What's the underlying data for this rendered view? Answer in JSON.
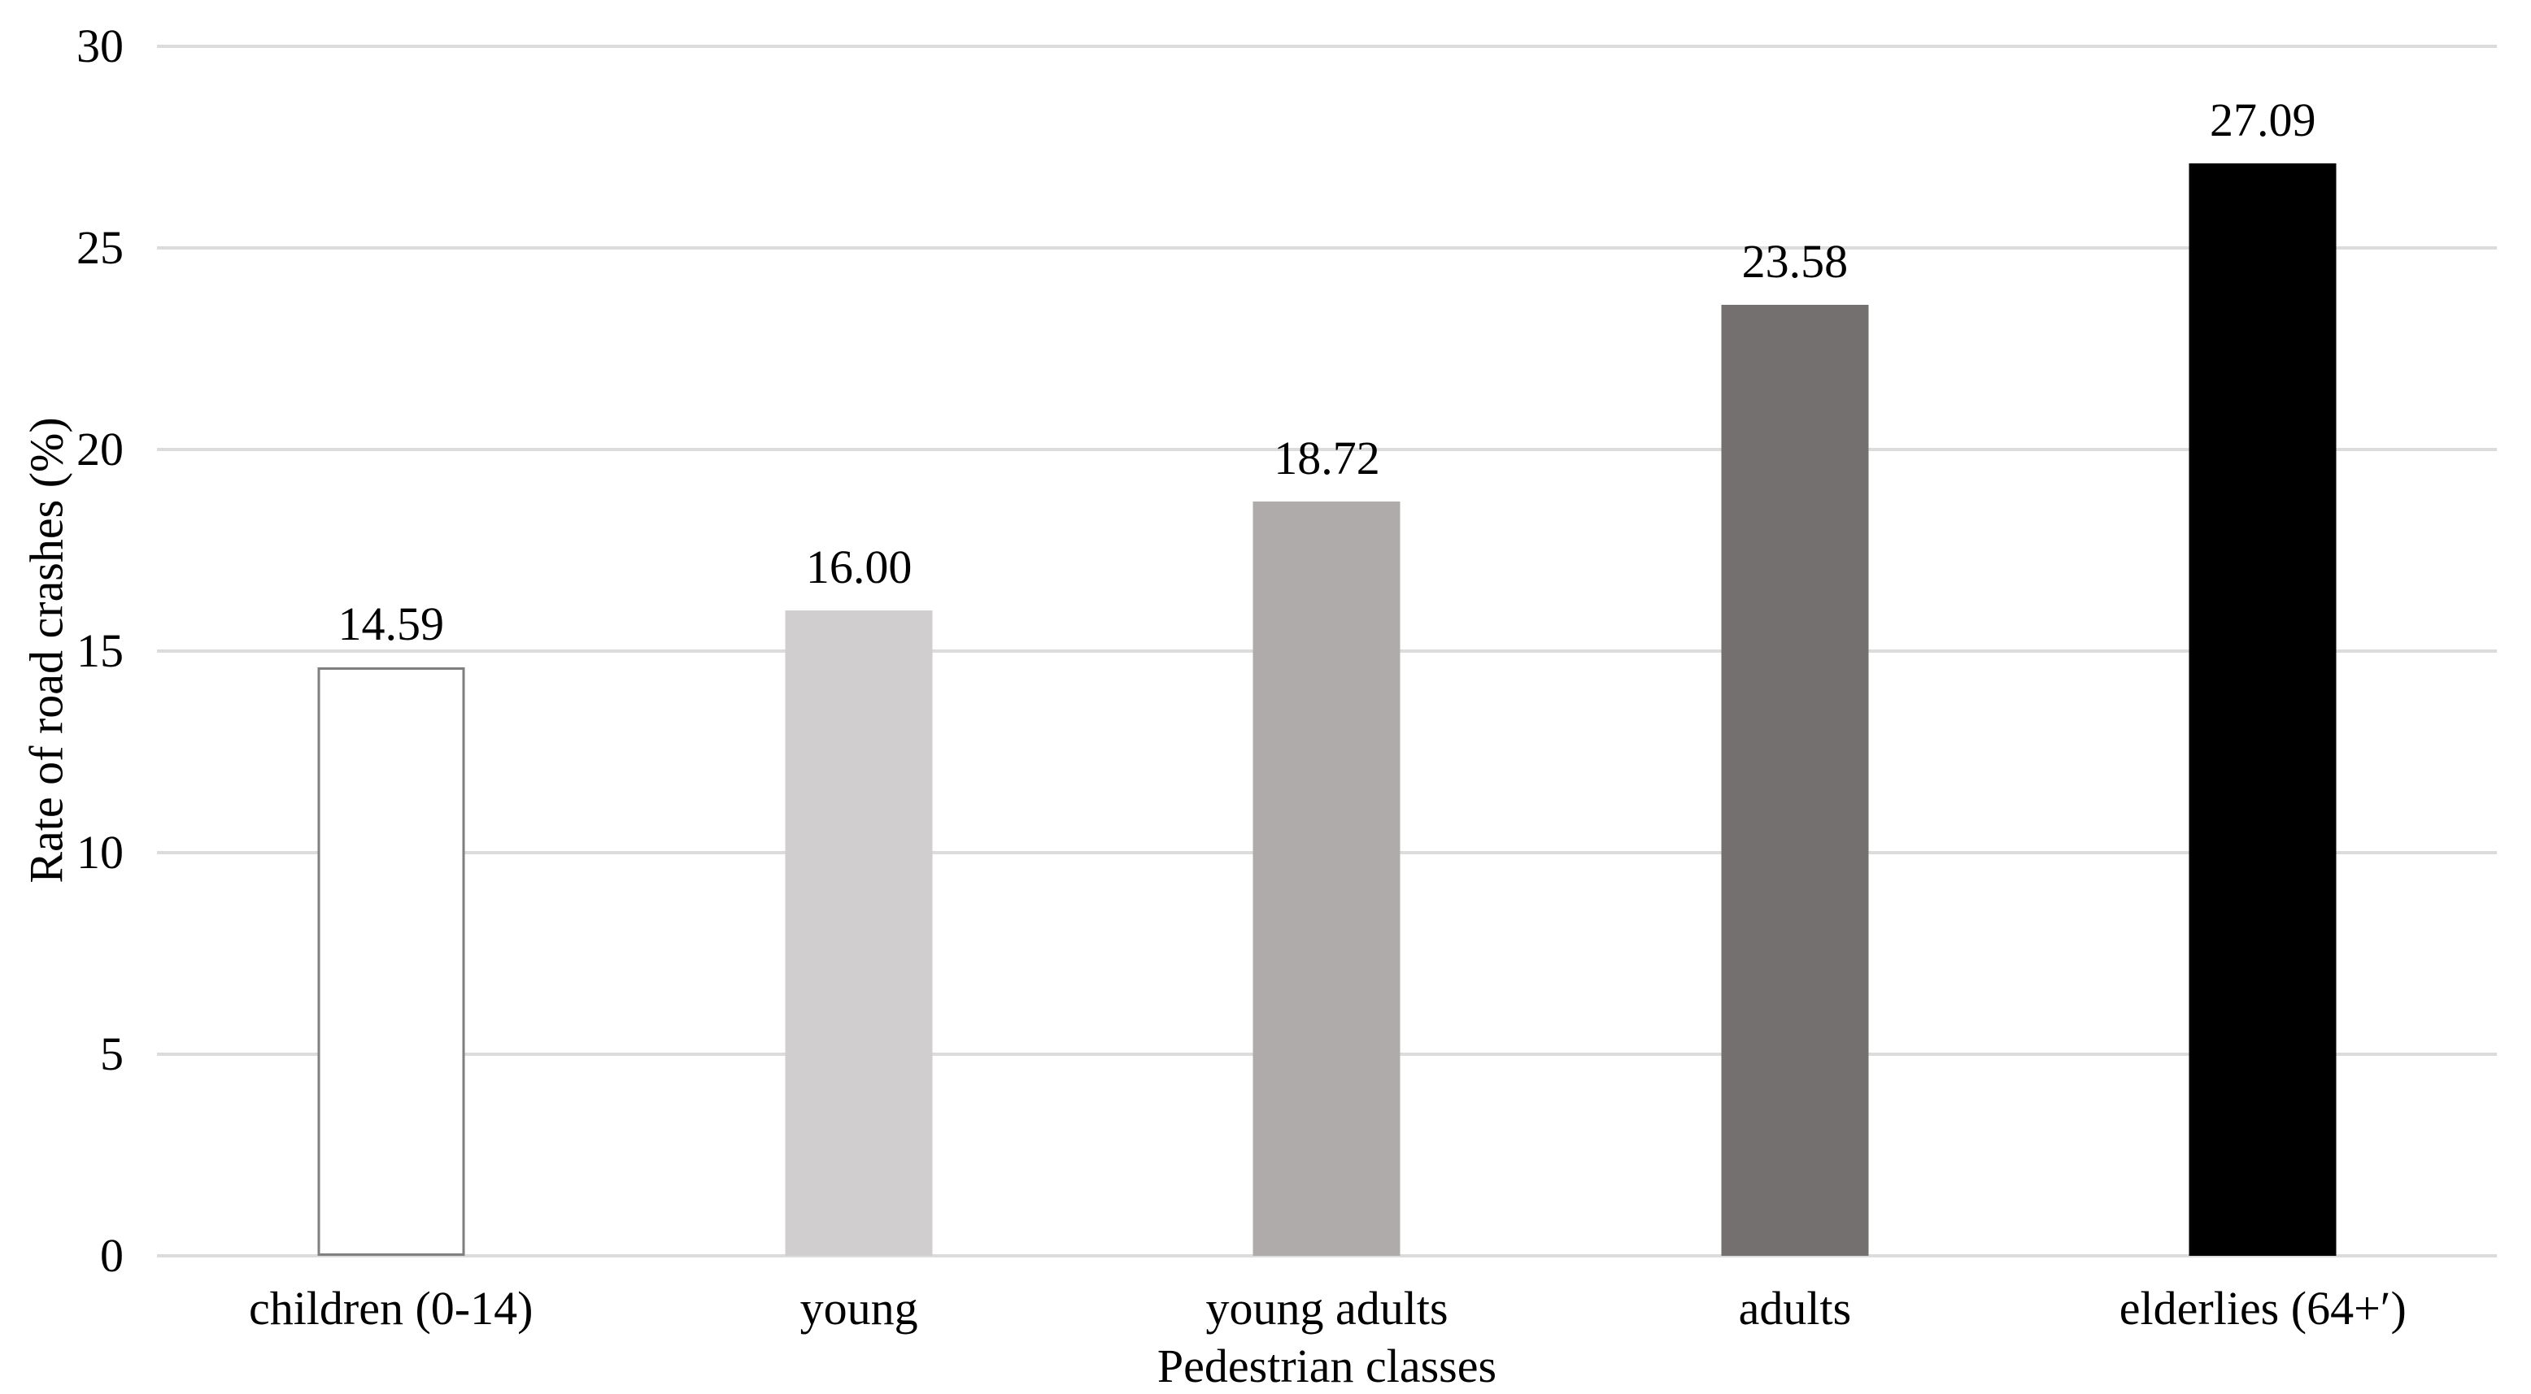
{
  "chart_data": {
    "type": "bar",
    "title": "",
    "xlabel": "Pedestrian classes",
    "ylabel": "Rate of road crashes (%)",
    "categories": [
      "children (0-14)",
      "young",
      "young adults",
      "adults",
      "elderlies (64+′)"
    ],
    "values": [
      14.59,
      16.0,
      18.72,
      23.58,
      27.09
    ],
    "value_labels": [
      "14.59",
      "16.00",
      "18.72",
      "23.58",
      "27.09"
    ],
    "ylim": [
      0,
      30
    ],
    "yticks": [
      0,
      5,
      10,
      15,
      20,
      25,
      30
    ],
    "grid": "horizontal-only",
    "legend": "none",
    "bar_styles": [
      {
        "fill": "#FFFFFF",
        "border": "#7F7F7F"
      },
      {
        "fill": "#D0CECE",
        "border": null
      },
      {
        "fill": "#AFABAB",
        "border": null
      },
      {
        "fill": "#757070",
        "border": null
      },
      {
        "fill": "#000000",
        "border": null
      }
    ],
    "colors": {
      "gridline": "#DCDCDC",
      "text": "#000000",
      "background": "#FFFFFF"
    }
  }
}
